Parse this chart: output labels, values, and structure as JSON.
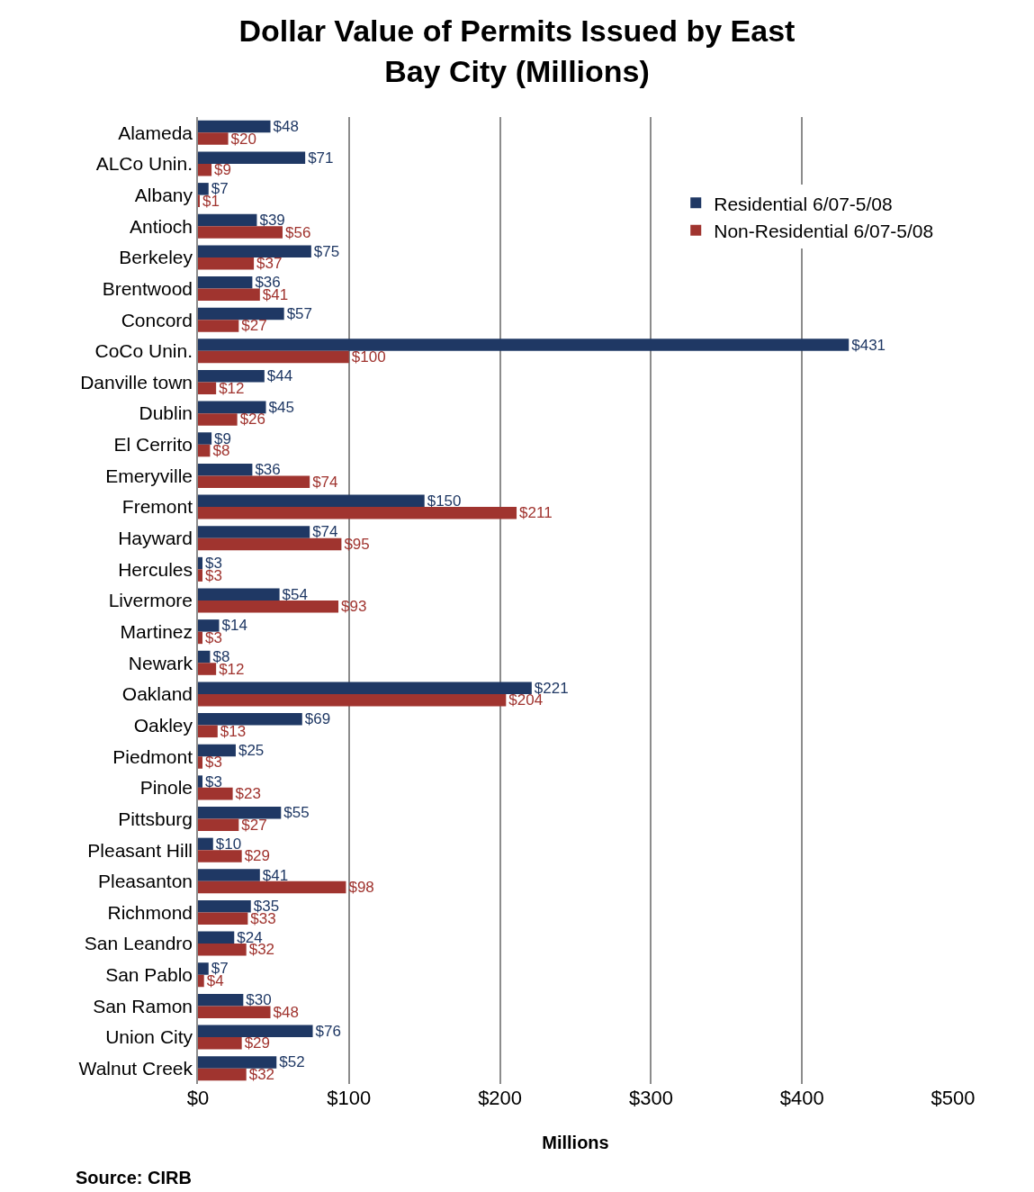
{
  "chart_data": {
    "type": "bar",
    "orientation": "horizontal",
    "title": "Dollar Value of Permits Issued by East Bay City (Millions)",
    "xlabel": "Millions",
    "categories": [
      "Alameda",
      "ALCo Unin.",
      "Albany",
      "Antioch",
      "Berkeley",
      "Brentwood",
      "Concord",
      "CoCo Unin.",
      "Danville town",
      "Dublin",
      "El Cerrito",
      "Emeryville",
      "Fremont",
      "Hayward",
      "Hercules",
      "Livermore",
      "Martinez",
      "Newark",
      "Oakland",
      "Oakley",
      "Piedmont",
      "Pinole",
      "Pittsburg",
      "Pleasant Hill",
      "Pleasanton",
      "Richmond",
      "San Leandro",
      "San Pablo",
      "San Ramon",
      "Union City",
      "Walnut Creek"
    ],
    "series": [
      {
        "name": "Residential 6/07-5/08",
        "color": "#1f3864",
        "values": [
          48,
          71,
          7,
          39,
          75,
          36,
          57,
          431,
          44,
          45,
          9,
          36,
          150,
          74,
          3,
          54,
          14,
          8,
          221,
          69,
          25,
          3,
          55,
          10,
          41,
          35,
          24,
          7,
          30,
          76,
          52
        ],
        "value_labels": [
          "$48",
          "$71",
          "$7",
          "$39",
          "$75",
          "$36",
          "$57",
          "$431",
          "$44",
          "$45",
          "$9",
          "$36",
          "$150",
          "$74",
          "$3",
          "$54",
          "$14",
          "$8",
          "$221",
          "$69",
          "$25",
          "$3",
          "$55",
          "$10",
          "$41",
          "$35",
          "$24",
          "$7",
          "$30",
          "$76",
          "$52"
        ]
      },
      {
        "name": "Non-Residential 6/07-5/08",
        "color": "#a0342f",
        "values": [
          20,
          9,
          1,
          56,
          37,
          41,
          27,
          100,
          12,
          26,
          8,
          74,
          211,
          95,
          3,
          93,
          3,
          12,
          204,
          13,
          3,
          23,
          27,
          29,
          98,
          33,
          32,
          4,
          48,
          29,
          32
        ],
        "value_labels": [
          "$20",
          "$9",
          "$1",
          "$56",
          "$37",
          "$41",
          "$27",
          "$100",
          "$12",
          "$26",
          "$8",
          "$74",
          "$211",
          "$95",
          "$3",
          "$93",
          "$3",
          "$12",
          "$204",
          "$13",
          "$3",
          "$23",
          "$27",
          "$29",
          "$98",
          "$33",
          "$32",
          "$4",
          "$48",
          "$29",
          "$32"
        ]
      }
    ],
    "xlim": [
      0,
      500
    ],
    "xticks": [
      {
        "value": 0,
        "label": "$0"
      },
      {
        "value": 100,
        "label": "$100"
      },
      {
        "value": 200,
        "label": "$200"
      },
      {
        "value": 300,
        "label": "$300"
      },
      {
        "value": 400,
        "label": "$400"
      },
      {
        "value": 500,
        "label": "$500"
      }
    ],
    "grid": "x",
    "legend": "top right",
    "annotations": [
      "Source: CIRB"
    ]
  }
}
